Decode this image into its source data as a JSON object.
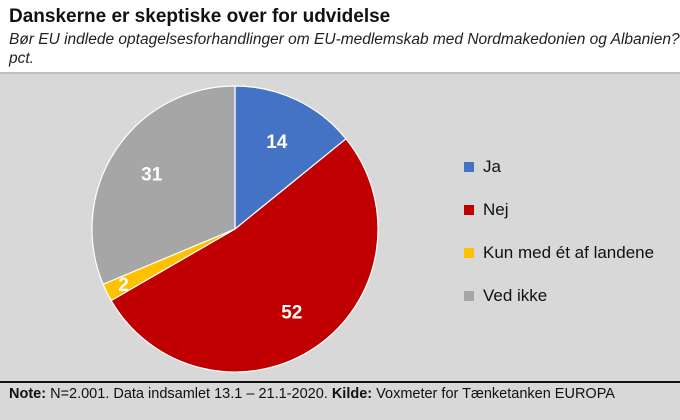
{
  "chart_data": {
    "type": "pie",
    "title": "Danskerne er skeptiske over for udvidelse",
    "subtitle": "Bør EU indlede optagelsesforhandlinger om EU-medlemskab med Nordmakedonien og Albanien?, pct.",
    "slices": [
      {
        "label": "Ja",
        "value": 14,
        "color": "#4472c4"
      },
      {
        "label": "Nej",
        "value": 52,
        "color": "#c00000"
      },
      {
        "label": "Kun med ét af landene",
        "value": 2,
        "color": "#ffc000"
      },
      {
        "label": "Ved ikke",
        "value": 31,
        "color": "#a6a6a6"
      }
    ],
    "legend_position": "right"
  },
  "note": {
    "note_label": "Note:",
    "note_text": " N=2.001. Data indsamlet 13.1 – 21.1-2020. ",
    "source_label": "Kilde:",
    "source_text": " Voxmeter for Tænketanken EUROPA"
  }
}
